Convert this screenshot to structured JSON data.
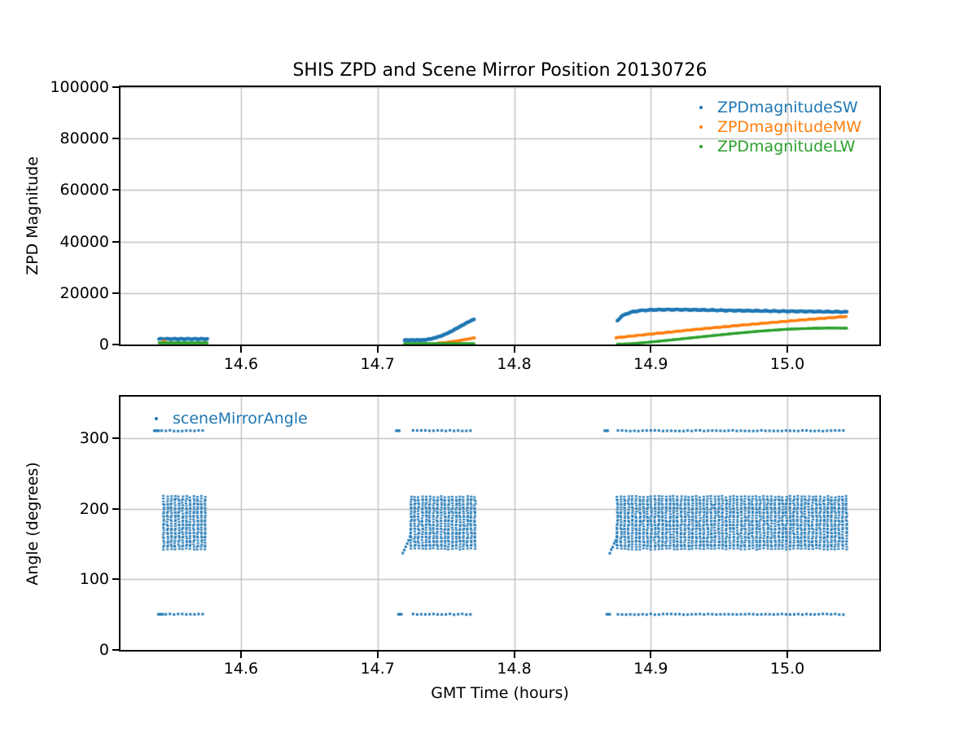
{
  "title": "SHIS ZPD and Scene Mirror Position 20130726",
  "colors": {
    "series_blue": "#1f77b4",
    "series_orange": "#ff7f0e",
    "series_green": "#2ca02c",
    "grid": "#c0c0c0",
    "spine": "#000000",
    "background": "#ffffff"
  },
  "top_plot": {
    "ylabel": "ZPD Magnitude",
    "legend": [
      {
        "label": "ZPDmagnitudeSW",
        "color": "#1f77b4"
      },
      {
        "label": "ZPDmagnitudeMW",
        "color": "#ff7f0e"
      },
      {
        "label": "ZPDmagnitudeLW",
        "color": "#2ca02c"
      }
    ],
    "yticks": [
      {
        "v": 0,
        "label": "0"
      },
      {
        "v": 20000,
        "label": "20000"
      },
      {
        "v": 40000,
        "label": "40000"
      },
      {
        "v": 60000,
        "label": "60000"
      },
      {
        "v": 80000,
        "label": "80000"
      },
      {
        "v": 100000,
        "label": "100000"
      }
    ]
  },
  "bottom_plot": {
    "ylabel": "Angle (degrees)",
    "xlabel": "GMT Time (hours)",
    "legend": [
      {
        "label": "sceneMirrorAngle",
        "color": "#1f77b4"
      }
    ],
    "yticks": [
      {
        "v": 0,
        "label": "0"
      },
      {
        "v": 100,
        "label": "100"
      },
      {
        "v": 200,
        "label": "200"
      },
      {
        "v": 300,
        "label": "300"
      }
    ]
  },
  "xticks": [
    {
      "v": 14.6,
      "label": "14.6"
    },
    {
      "v": 14.7,
      "label": "14.7"
    },
    {
      "v": 14.8,
      "label": "14.8"
    },
    {
      "v": 14.9,
      "label": "14.9"
    },
    {
      "v": 15.0,
      "label": "15.0"
    }
  ],
  "chart_data": [
    {
      "type": "scatter",
      "title": "SHIS ZPD and Scene Mirror Position 20130726",
      "xlabel": "",
      "ylabel": "ZPD Magnitude",
      "xlim": [
        14.5118,
        15.0673
      ],
      "ylim": [
        0,
        100000
      ],
      "grid": true,
      "legend_position": "upper right",
      "series": [
        {
          "name": "ZPDmagnitudeSW",
          "color": "#1f77b4",
          "segments": [
            {
              "t": [
                14.54,
                14.5755
              ],
              "v": [
                2150,
                2150
              ],
              "dt": 0.0006,
              "r": 2.2,
              "wiggle": [
                130,
                0.005
              ]
            },
            {
              "t": [
                14.7197,
                14.734,
                14.74,
                14.7465,
                14.7525,
                14.758,
                14.7625,
                14.7665,
                14.771
              ],
              "v": [
                1700,
                1750,
                2300,
                3300,
                4700,
                6300,
                7600,
                8800,
                9900
              ],
              "dt": 0.0006,
              "r": 2.2,
              "wiggle": [
                60,
                0.004
              ]
            },
            {
              "t": [
                14.8755,
                14.8785,
                14.882,
                14.8865,
                14.8925,
                14.9,
                14.9095,
                14.92,
                14.935,
                14.955,
                14.975,
                14.995,
                15.015,
                15.0435
              ],
              "v": [
                9300,
                10900,
                11900,
                12700,
                13200,
                13450,
                13550,
                13550,
                13450,
                13250,
                13100,
                12950,
                12850,
                12650
              ],
              "dt": 0.0006,
              "r": 2.2,
              "wiggle": [
                110,
                0.0065
              ]
            }
          ]
        },
        {
          "name": "ZPDmagnitudeMW",
          "color": "#ff7f0e",
          "segments": [
            {
              "t": [
                14.5429,
                14.5443
              ],
              "v": [
                1300,
                1300
              ],
              "dt": 0.0007,
              "r": 1.8
            },
            {
              "t": [
                14.744,
                14.752,
                14.7595,
                14.766,
                14.771
              ],
              "v": [
                500,
                900,
                1500,
                2100,
                2600
              ],
              "dt": 0.0006,
              "r": 1.8
            },
            {
              "t": [
                14.8745,
                14.89,
                14.91,
                14.93,
                14.95,
                14.97,
                14.99,
                15.01,
                15.0435
              ],
              "v": [
                2600,
                3500,
                4600,
                5700,
                6700,
                7700,
                8600,
                9500,
                10900
              ],
              "dt": 0.0006,
              "r": 1.8,
              "wiggle": [
                70,
                0.007
              ]
            }
          ]
        },
        {
          "name": "ZPDmagnitudeLW",
          "color": "#2ca02c",
          "segments": [
            {
              "t": [
                14.54,
                14.5755
              ],
              "v": [
                620,
                620
              ],
              "dt": 0.0006,
              "r": 1.7
            },
            {
              "t": [
                14.7197,
                14.771
              ],
              "v": [
                330,
                330
              ],
              "dt": 0.0006,
              "r": 1.7
            },
            {
              "t": [
                14.8755,
                14.8835,
                14.8915,
                14.9,
                14.92,
                14.94,
                14.96,
                14.98,
                15.0,
                15.018,
                15.03,
                15.0435
              ],
              "v": [
                150,
                250,
                550,
                950,
                2050,
                3150,
                4250,
                5200,
                5950,
                6300,
                6400,
                6350
              ],
              "dt": 0.0006,
              "r": 1.7
            }
          ]
        }
      ]
    },
    {
      "type": "scatter",
      "title": "",
      "xlabel": "GMT Time (hours)",
      "ylabel": "Angle (degrees)",
      "xlim": [
        14.5118,
        15.0673
      ],
      "ylim": [
        0,
        358.8
      ],
      "grid": true,
      "legend_position": "upper left",
      "series": [
        {
          "name": "sceneMirrorAngle",
          "color": "#1f77b4",
          "block_angles": [
            215.4,
            209.5,
            203.6,
            197.8,
            191.9,
            186.0,
            180.1,
            174.3,
            168.4,
            162.5,
            156.6,
            150.8,
            145.0
          ],
          "row_dt": 0.003,
          "block_dt": 0.00275,
          "clusters": [
            {
              "rows": [
                {
                  "angle": 310.5,
                  "t0": 14.5365,
                  "t1": 14.574,
                  "lead": true
                },
                {
                  "angle": 50.5,
                  "t0": 14.5395,
                  "t1": 14.574,
                  "lead": true
                }
              ],
              "dashes": [],
              "block": {
                "t0": 14.5435,
                "t1": 14.5755
              },
              "ramp": null
            },
            {
              "rows": [
                {
                  "angle": 310.5,
                  "t0": 14.726,
                  "t1": 14.7705,
                  "lead": false
                },
                {
                  "angle": 50.5,
                  "t0": 14.726,
                  "t1": 14.7705,
                  "lead": false
                }
              ],
              "dashes": [
                {
                  "angle": 310.5,
                  "t0": 14.7137,
                  "t1": 14.7163
                },
                {
                  "angle": 50.5,
                  "t0": 14.7152,
                  "t1": 14.7178
                }
              ],
              "block": {
                "t0": 14.7245,
                "t1": 14.7715
              },
              "ramp": {
                "t0": 14.7185,
                "t1": 14.7238,
                "a0": 137,
                "a1": 160
              }
            },
            {
              "rows": [
                {
                  "angle": 310.5,
                  "t0": 14.876,
                  "t1": 15.0425,
                  "lead": false
                },
                {
                  "angle": 50.5,
                  "t0": 14.876,
                  "t1": 15.0425,
                  "lead": false
                }
              ],
              "dashes": [
                {
                  "angle": 310.5,
                  "t0": 14.8663,
                  "t1": 14.8689
                },
                {
                  "angle": 50.5,
                  "t0": 14.8678,
                  "t1": 14.8704
                }
              ],
              "block": {
                "t0": 14.8755,
                "t1": 15.0435
              },
              "ramp": {
                "t0": 14.87,
                "t1": 14.8753,
                "a0": 137,
                "a1": 160
              }
            }
          ]
        }
      ]
    }
  ]
}
